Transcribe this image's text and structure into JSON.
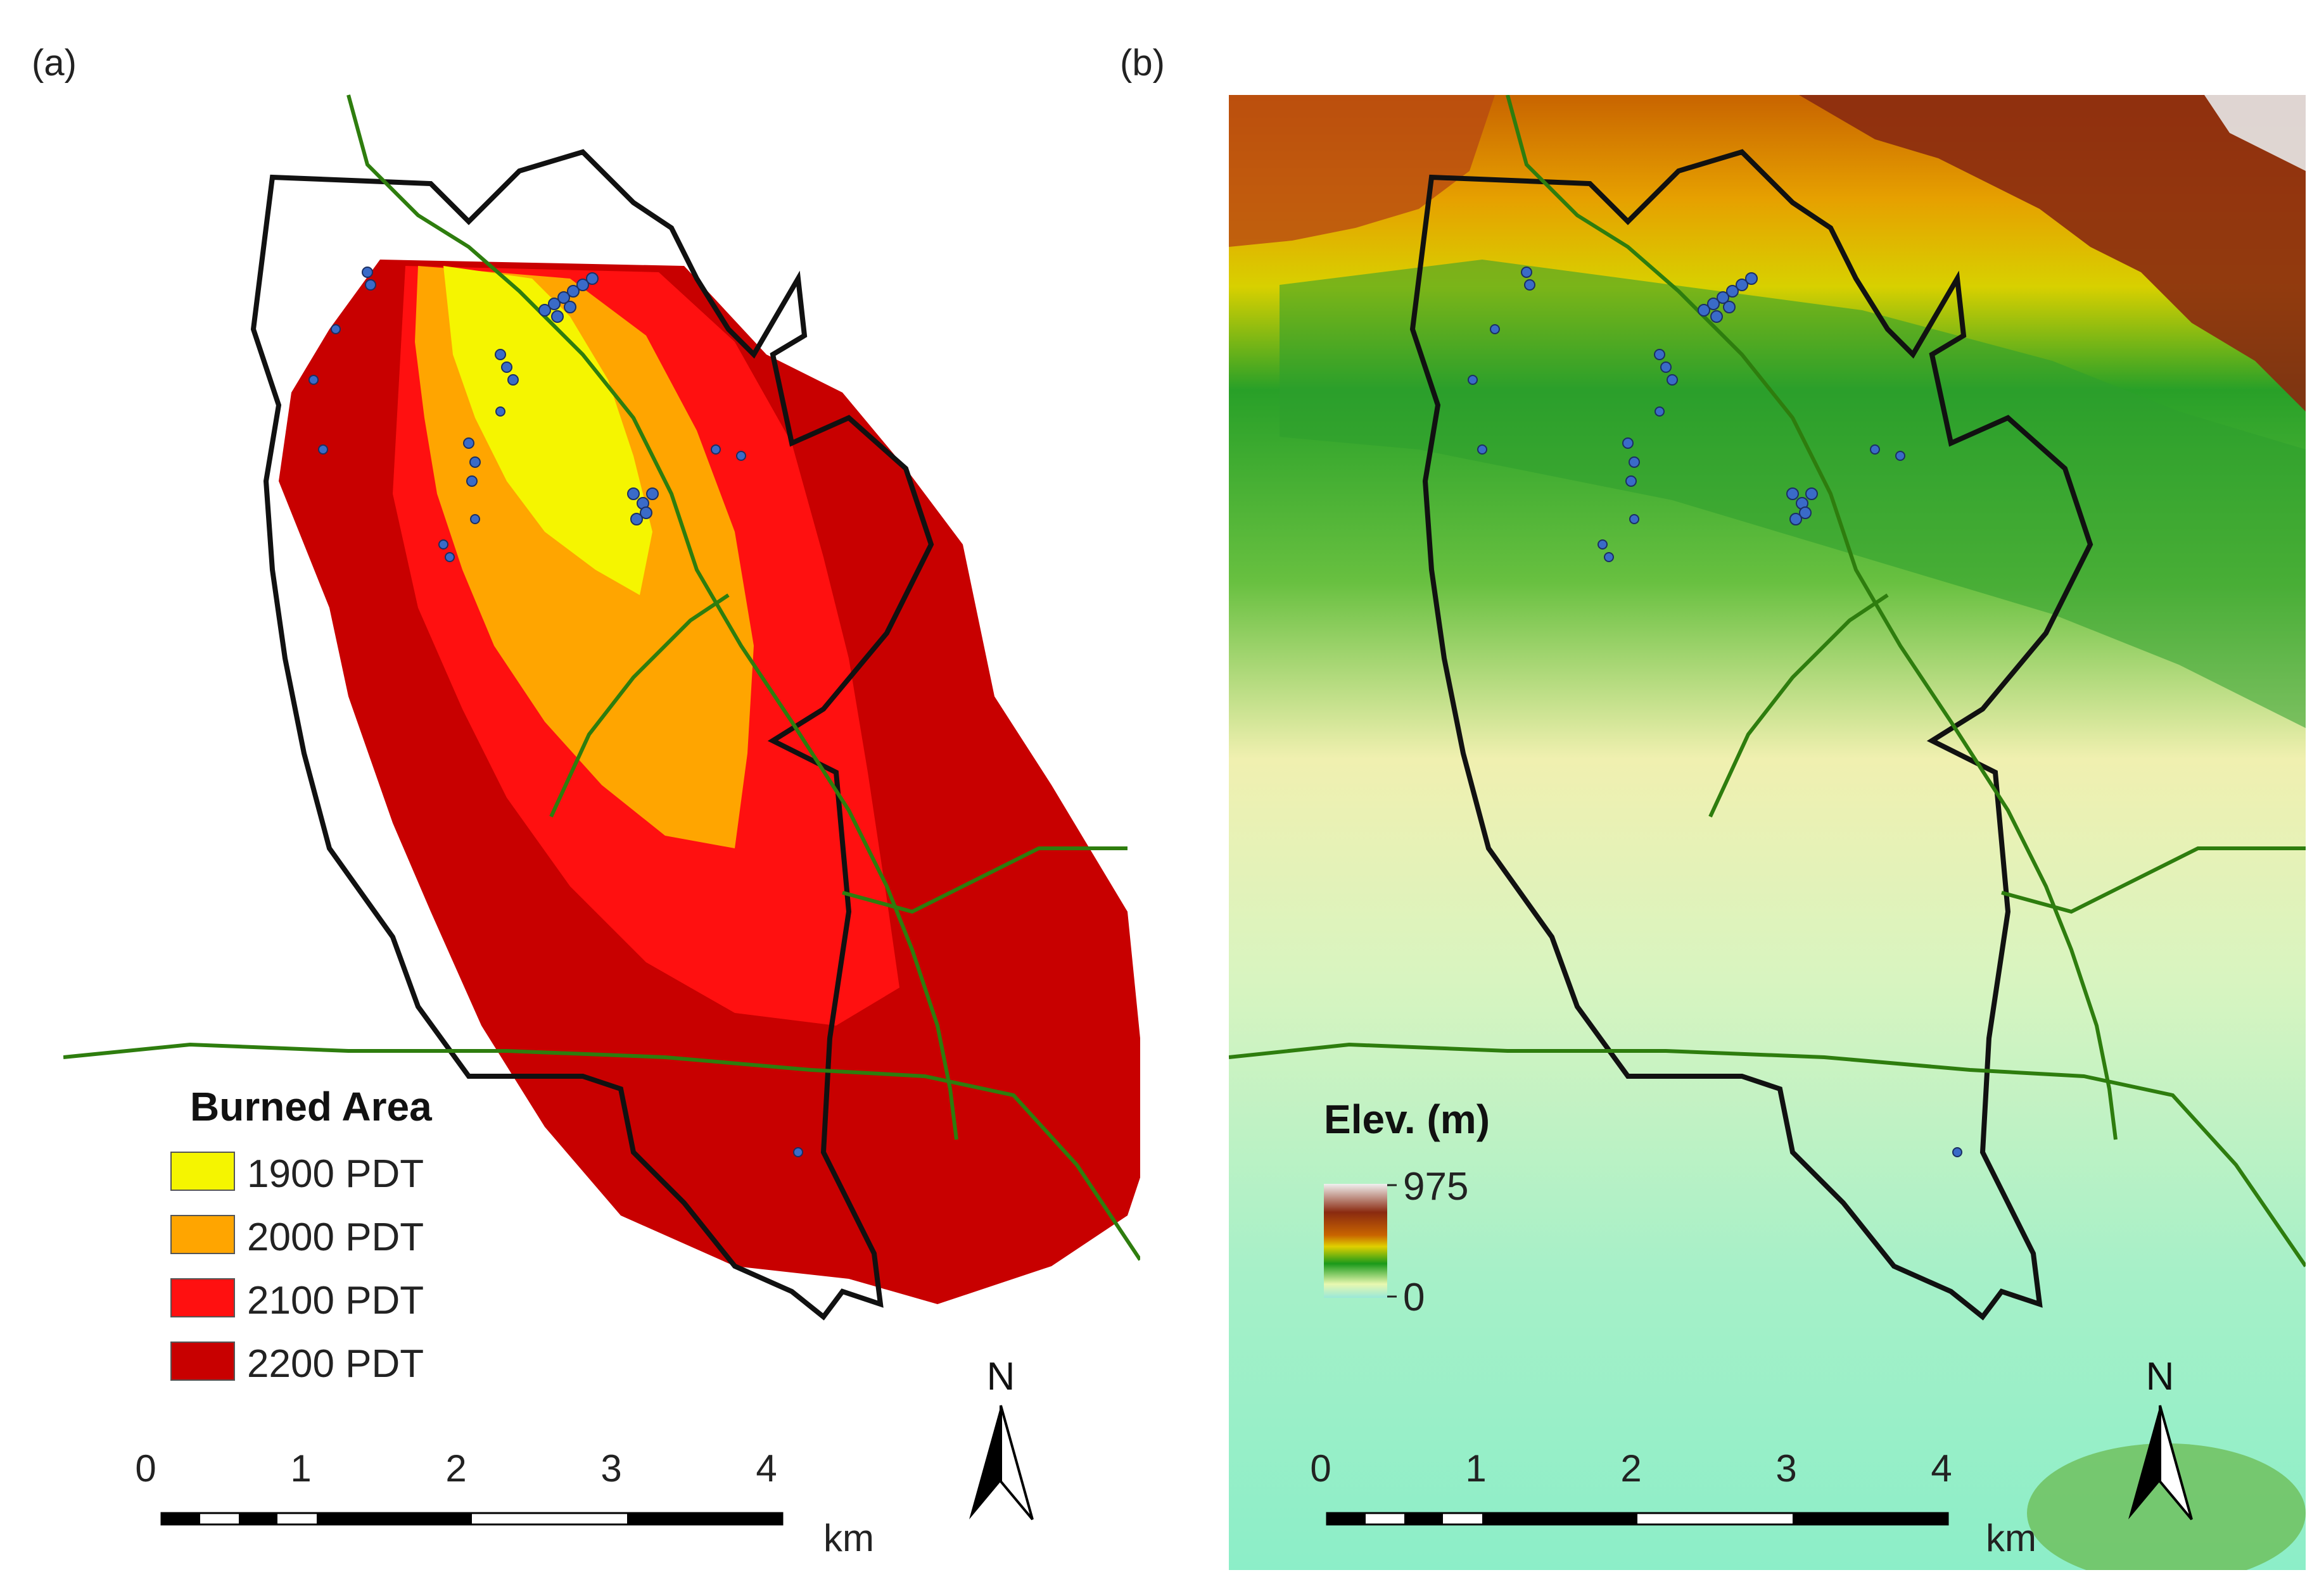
{
  "panels": {
    "a": {
      "label": "(a)"
    },
    "b": {
      "label": "(b)"
    }
  },
  "legend_a": {
    "title": "Burned Area",
    "items": [
      {
        "label": "1900 PDT",
        "color": "#f5f500"
      },
      {
        "label": "2000 PDT",
        "color": "#ffa500"
      },
      {
        "label": "2100 PDT",
        "color": "#ff1010"
      },
      {
        "label": "2200 PDT",
        "color": "#c80000"
      }
    ]
  },
  "legend_b": {
    "title": "Elev. (m)",
    "max_label": "975",
    "min_label": "0"
  },
  "scalebar": {
    "ticks": [
      "0",
      "1",
      "2",
      "3",
      "4"
    ],
    "unit": "km"
  },
  "north_arrow": {
    "label": "N"
  },
  "colors": {
    "boundary": "#111111",
    "roads": "#2e7d0e",
    "buildings": "#3a6bc8"
  }
}
